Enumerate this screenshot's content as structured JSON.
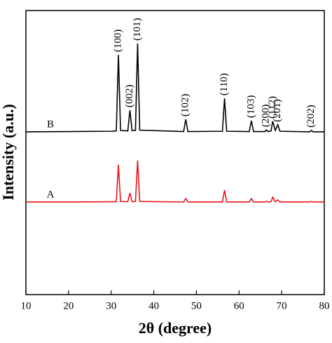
{
  "chart_data": {
    "type": "line",
    "xlabel": "2θ (degree)",
    "ylabel": "Intensity (a.u.)",
    "xlim": [
      10,
      80
    ],
    "xticks": [
      10,
      20,
      30,
      40,
      50,
      60,
      70,
      80
    ],
    "ylim": [
      0,
      100
    ],
    "x": [
      10,
      20,
      30,
      31.2,
      31.7,
      32.2,
      33.9,
      34.4,
      34.9,
      35.7,
      36.2,
      36.7,
      47.0,
      47.5,
      48.0,
      56.1,
      56.6,
      57.1,
      62.4,
      62.9,
      63.4,
      66.1,
      66.4,
      66.8,
      67.5,
      67.9,
      68.5,
      69.1,
      69.6,
      76.6,
      77.0,
      77.4,
      80
    ],
    "series": [
      {
        "name": "B",
        "color": "#000000",
        "values": [
          57.3,
          57.4,
          57.5,
          57.6,
          84.4,
          57.8,
          57.6,
          64.9,
          57.7,
          57.8,
          88.4,
          57.9,
          57.4,
          61.7,
          57.4,
          57.5,
          69.1,
          57.5,
          57.4,
          61.2,
          57.4,
          57.4,
          58.0,
          57.4,
          57.6,
          61.0,
          57.8,
          59.8,
          57.5,
          57.3,
          57.8,
          57.3,
          57.3
        ]
      },
      {
        "name": "A",
        "color": "#e8141b",
        "values": [
          32.6,
          32.6,
          32.7,
          32.7,
          45.7,
          32.8,
          32.7,
          35.8,
          32.7,
          32.8,
          47.2,
          32.8,
          32.6,
          33.8,
          32.6,
          32.6,
          36.8,
          32.6,
          32.6,
          33.8,
          32.6,
          32.6,
          32.8,
          32.6,
          32.7,
          34.3,
          32.7,
          33.3,
          32.6,
          32.6,
          32.8,
          32.6,
          32.6
        ]
      }
    ],
    "annotations": [
      {
        "text": "(100)",
        "x": 31.7
      },
      {
        "text": "(002)",
        "x": 34.4
      },
      {
        "text": "(101)",
        "x": 36.2
      },
      {
        "text": "(102)",
        "x": 47.5
      },
      {
        "text": "(110)",
        "x": 56.6
      },
      {
        "text": "(103)",
        "x": 62.9
      },
      {
        "text": "(200)",
        "x": 66.4
      },
      {
        "text": "(112)",
        "x": 67.9
      },
      {
        "text": "(201)",
        "x": 69.1
      },
      {
        "text": "(202)",
        "x": 77.0
      }
    ]
  }
}
